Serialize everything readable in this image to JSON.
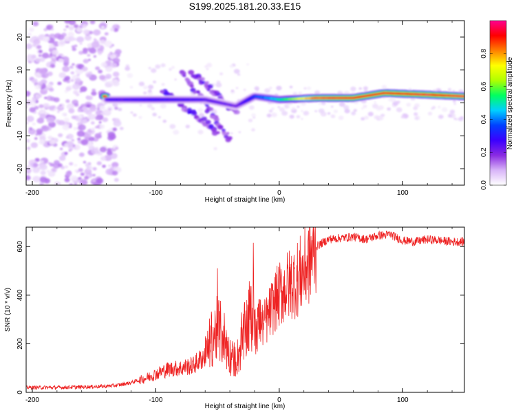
{
  "title": "S199.2025.181.20.33.E15",
  "chart_data": [
    {
      "type": "heatmap",
      "xlabel": "Height of straight line (km)",
      "ylabel": "Frequency (Hz)",
      "xlim": [
        -205,
        150
      ],
      "ylim": [
        -25,
        25
      ],
      "x_ticks": [
        -200,
        -100,
        0,
        100
      ],
      "y_ticks": [
        -20,
        -10,
        0,
        10,
        20
      ],
      "colorbar": {
        "label": "Normalized spectral amplitude",
        "range": [
          0,
          1
        ],
        "ticks": [
          0.0,
          0.2,
          0.4,
          0.6,
          0.8
        ],
        "colormap": [
          "#ffffff",
          "#d8b4f8",
          "#8a2be2",
          "#3b00ff",
          "#0040ff",
          "#00d0ff",
          "#00ff60",
          "#b0ff00",
          "#ffff00",
          "#ff8000",
          "#ff0000",
          "#ff0090"
        ]
      },
      "ridge": {
        "description_points": [
          {
            "x": -140,
            "y": 1,
            "amplitude": 0.25
          },
          {
            "x": -100,
            "y": 1,
            "amplitude": 0.3
          },
          {
            "x": -60,
            "y": 1,
            "amplitude": 0.25
          },
          {
            "x": -35,
            "y": -1,
            "amplitude": 0.2
          },
          {
            "x": -20,
            "y": 2,
            "amplitude": 0.35
          },
          {
            "x": 0,
            "y": 1,
            "amplitude": 0.5
          },
          {
            "x": 30,
            "y": 1.5,
            "amplitude": 0.85
          },
          {
            "x": 60,
            "y": 1.5,
            "amplitude": 0.9
          },
          {
            "x": 85,
            "y": 3,
            "amplitude": 0.9
          },
          {
            "x": 120,
            "y": 2.5,
            "amplitude": 0.95
          },
          {
            "x": 150,
            "y": 2,
            "amplitude": 0.85
          }
        ],
        "branches": [
          {
            "from": [
              -80,
              10
            ],
            "to": [
              -40,
              -11
            ]
          },
          {
            "from": [
              -70,
              9
            ],
            "to": [
              -35,
              -3
            ]
          },
          {
            "from": [
              -95,
              4
            ],
            "to": [
              -50,
              -9
            ]
          }
        ]
      }
    },
    {
      "type": "line",
      "xlabel": "Height of straight line (km)",
      "ylabel": "SNR (10 * v/v)",
      "xlim": [
        -205,
        150
      ],
      "ylim": [
        0,
        680
      ],
      "x_ticks": [
        -200,
        -100,
        0,
        100
      ],
      "y_ticks": [
        0,
        200,
        400,
        600
      ],
      "series": [
        {
          "color": "#ee2222",
          "x": [
            -205,
            -180,
            -160,
            -140,
            -130,
            -120,
            -110,
            -100,
            -90,
            -80,
            -70,
            -60,
            -55,
            -50,
            -45,
            -40,
            -35,
            -30,
            -25,
            -20,
            -15,
            -10,
            -5,
            0,
            5,
            10,
            15,
            20,
            25,
            30,
            40,
            50,
            60,
            70,
            80,
            90,
            100,
            110,
            120,
            130,
            140,
            150
          ],
          "y": [
            20,
            20,
            22,
            25,
            30,
            40,
            55,
            75,
            95,
            100,
            110,
            150,
            220,
            260,
            230,
            150,
            130,
            200,
            300,
            330,
            270,
            300,
            360,
            400,
            430,
            450,
            470,
            500,
            550,
            600,
            630,
            635,
            640,
            630,
            645,
            650,
            625,
            620,
            630,
            625,
            620,
            620
          ]
        }
      ]
    }
  ]
}
